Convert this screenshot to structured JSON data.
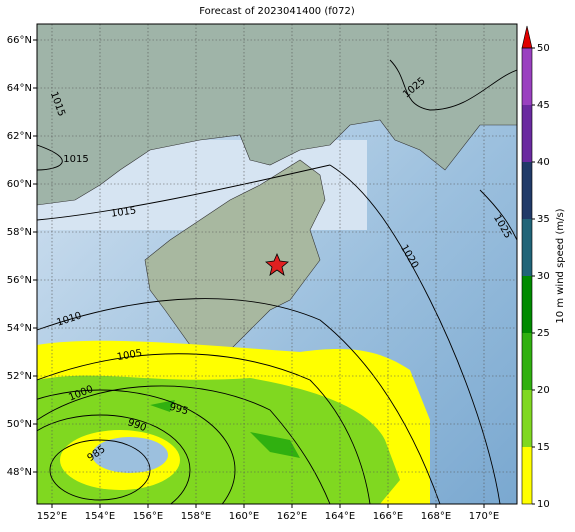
{
  "title": "Forecast of 2023041400 (f072)",
  "map": {
    "lon_ticks": [
      {
        "value": 152,
        "label": "152°E"
      },
      {
        "value": 154,
        "label": "154°E"
      },
      {
        "value": 156,
        "label": "156°E"
      },
      {
        "value": 158,
        "label": "158°E"
      },
      {
        "value": 160,
        "label": "160°E"
      },
      {
        "value": 162,
        "label": "162°E"
      },
      {
        "value": 164,
        "label": "164°E"
      },
      {
        "value": 166,
        "label": "166°E"
      },
      {
        "value": 168,
        "label": "168°E"
      },
      {
        "value": 170,
        "label": "170°E"
      }
    ],
    "lat_ticks": [
      {
        "value": 66,
        "label": "66°N"
      },
      {
        "value": 64,
        "label": "64°N"
      },
      {
        "value": 62,
        "label": "62°N"
      },
      {
        "value": 60,
        "label": "60°N"
      },
      {
        "value": 58,
        "label": "58°N"
      },
      {
        "value": 56,
        "label": "56°N"
      },
      {
        "value": 54,
        "label": "54°N"
      },
      {
        "value": 52,
        "label": "52°N"
      },
      {
        "value": 50,
        "label": "50°N"
      },
      {
        "value": 48,
        "label": "48°N"
      }
    ],
    "contour_labels": [
      1015,
      1015,
      1025,
      1015,
      1020,
      1025,
      1010,
      1005,
      1000,
      995,
      990,
      985
    ]
  },
  "colorbar": {
    "label": "10 m wind speed (m/s)",
    "ticks": [
      10,
      15,
      20,
      25,
      30,
      35,
      40,
      45,
      50
    ],
    "colors": [
      "#ffff00",
      "#80d820",
      "#30b010",
      "#008a00",
      "#206478",
      "#203a68",
      "#6a2aa0",
      "#9a40c0"
    ],
    "extend_color": "#e00000"
  }
}
